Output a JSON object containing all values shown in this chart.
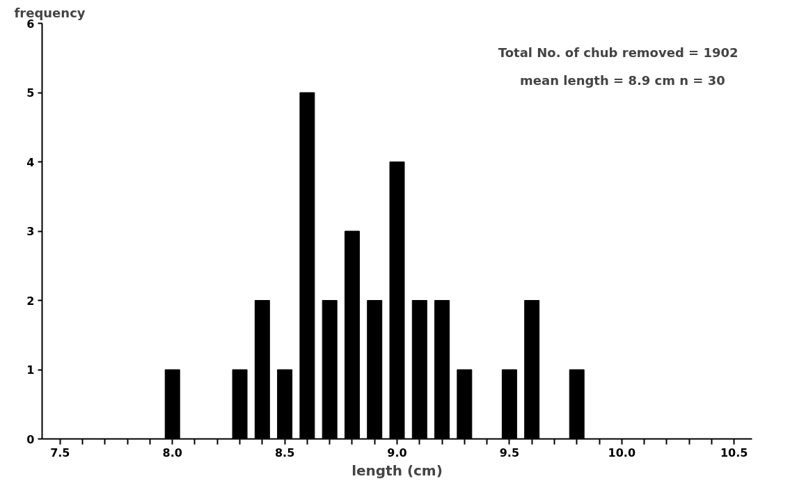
{
  "chart_data": {
    "type": "bar",
    "xlabel": "length (cm)",
    "ylabel": "frequency",
    "x": [
      8.0,
      8.3,
      8.4,
      8.5,
      8.6,
      8.7,
      8.8,
      8.9,
      9.0,
      9.1,
      9.2,
      9.3,
      9.5,
      9.6,
      9.8
    ],
    "values": [
      1,
      1,
      2,
      1,
      5,
      2,
      3,
      2,
      4,
      2,
      2,
      1,
      1,
      2,
      1
    ],
    "color": "#000000",
    "xlim": [
      7.42,
      10.58
    ],
    "xticks": [
      {
        "value": 7.5,
        "label": "7.5"
      },
      {
        "value": 7.6,
        "label": null
      },
      {
        "value": 7.7,
        "label": null
      },
      {
        "value": 7.8,
        "label": null
      },
      {
        "value": 7.9,
        "label": null
      },
      {
        "value": 8.0,
        "label": "8.0"
      },
      {
        "value": 8.1,
        "label": null
      },
      {
        "value": 8.2,
        "label": null
      },
      {
        "value": 8.3,
        "label": null
      },
      {
        "value": 8.4,
        "label": null
      },
      {
        "value": 8.5,
        "label": "8.5"
      },
      {
        "value": 8.6,
        "label": null
      },
      {
        "value": 8.7,
        "label": null
      },
      {
        "value": 8.8,
        "label": null
      },
      {
        "value": 8.9,
        "label": null
      },
      {
        "value": 9.0,
        "label": "9.0"
      },
      {
        "value": 9.1,
        "label": null
      },
      {
        "value": 9.2,
        "label": null
      },
      {
        "value": 9.3,
        "label": null
      },
      {
        "value": 9.4,
        "label": null
      },
      {
        "value": 9.5,
        "label": "9.5"
      },
      {
        "value": 9.6,
        "label": null
      },
      {
        "value": 9.7,
        "label": null
      },
      {
        "value": 9.8,
        "label": null
      },
      {
        "value": 9.9,
        "label": null
      },
      {
        "value": 10.0,
        "label": "10.0"
      },
      {
        "value": 10.1,
        "label": null
      },
      {
        "value": 10.2,
        "label": null
      },
      {
        "value": 10.3,
        "label": null
      },
      {
        "value": 10.4,
        "label": null
      },
      {
        "value": 10.5,
        "label": "10.5"
      }
    ],
    "ylim": [
      0,
      6
    ],
    "yticks": [
      0,
      1,
      2,
      3,
      4,
      5,
      6
    ],
    "grid": false,
    "annotations": [
      "Total No. of chub removed = 1902",
      "mean length = 8.9 cm    n = 30"
    ]
  }
}
